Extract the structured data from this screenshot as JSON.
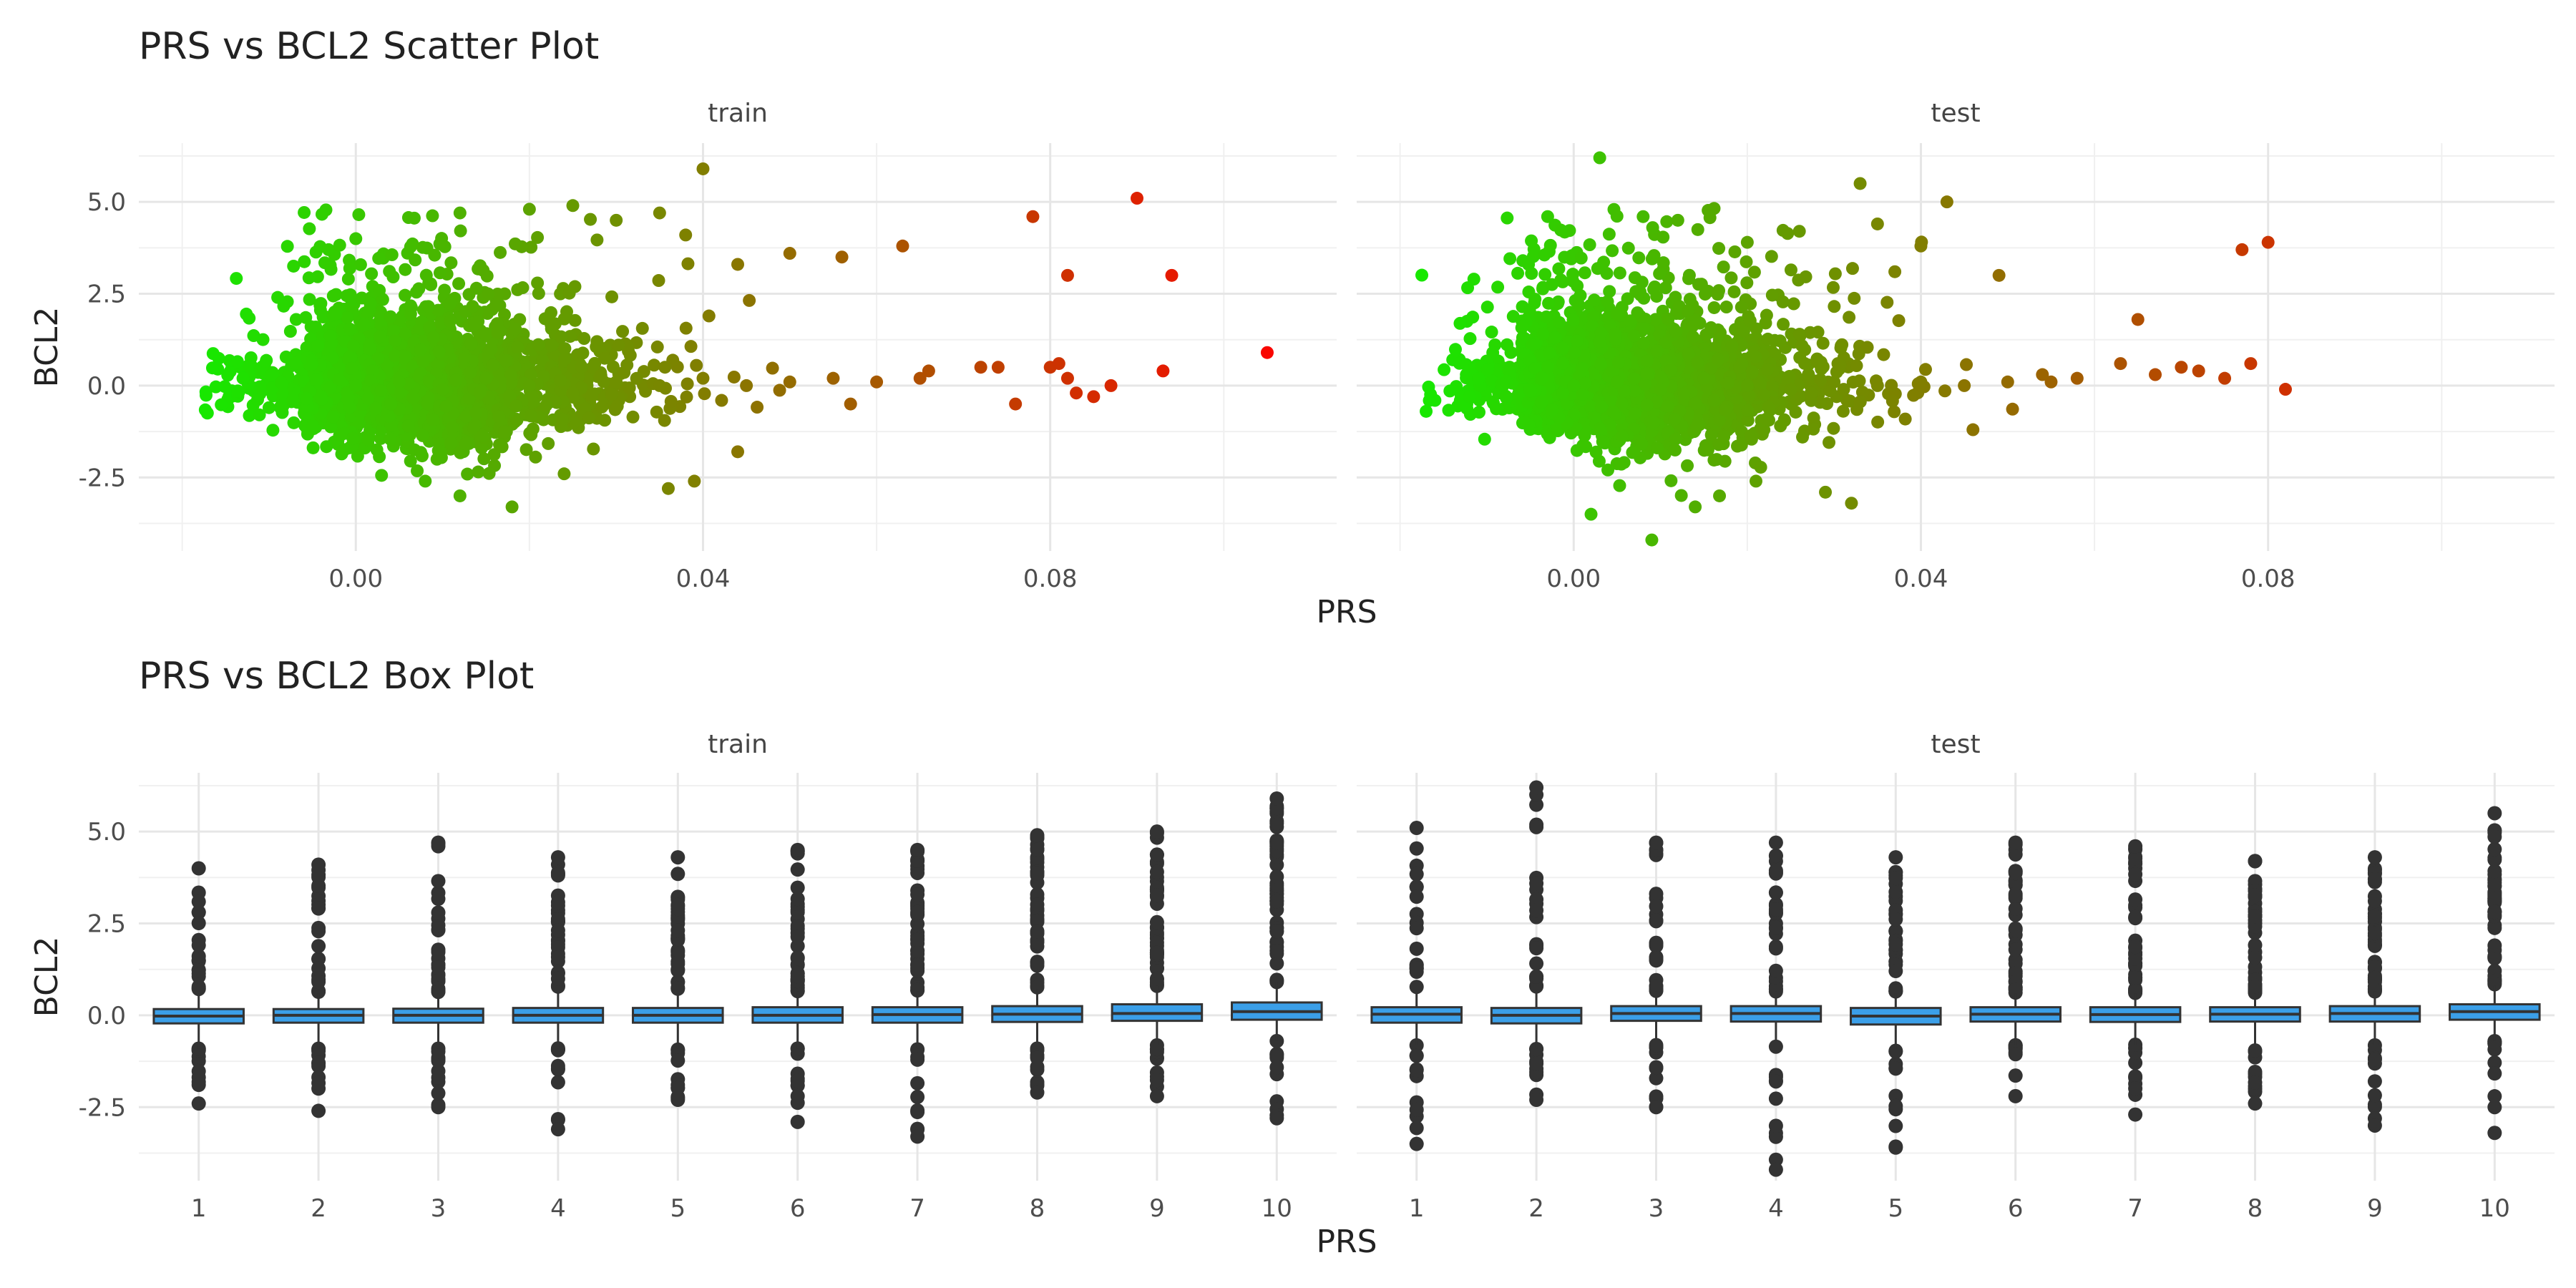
{
  "chart_data": [
    {
      "type": "scatter",
      "title": "PRS vs BCL2 Scatter Plot",
      "xlabel": "PRS",
      "ylabel": "BCL2",
      "facets": [
        "train",
        "test"
      ],
      "xlim": [
        -0.025,
        0.113
      ],
      "ylim": [
        -4.5,
        6.6
      ],
      "x_ticks": [
        0.0,
        0.04,
        0.08
      ],
      "x_tick_labels": [
        "0.00",
        "0.04",
        "0.08"
      ],
      "y_ticks": [
        -2.5,
        0.0,
        2.5,
        5.0
      ],
      "y_tick_labels": [
        "-2.5",
        "0.0",
        "2.5",
        "5.0"
      ],
      "color_scale": {
        "low": "#00ff00",
        "high": "#ff0000",
        "variable": "PRS"
      },
      "grid": true,
      "legend": "none",
      "series": [
        {
          "facet": "train",
          "points": [
            [
              0.0,
              0.0
            ],
            [
              0.005,
              0.1
            ],
            [
              0.01,
              -0.1
            ],
            [
              0.015,
              0.2
            ],
            [
              0.02,
              0.0
            ],
            [
              0.025,
              -0.2
            ],
            [
              0.03,
              0.1
            ],
            [
              0.035,
              0.0
            ],
            [
              0.04,
              0.2
            ],
            [
              0.045,
              0.0
            ],
            [
              0.05,
              0.1
            ],
            [
              0.055,
              0.2
            ],
            [
              0.06,
              0.1
            ],
            [
              0.065,
              0.2
            ],
            [
              -0.013,
              0.2
            ],
            [
              -0.01,
              -0.6
            ],
            [
              -0.009,
              2.4
            ],
            [
              0.0,
              4.0
            ],
            [
              0.012,
              4.7
            ],
            [
              0.02,
              4.8
            ],
            [
              0.025,
              4.9
            ],
            [
              0.03,
              4.5
            ],
            [
              0.035,
              4.7
            ],
            [
              0.038,
              4.1
            ],
            [
              0.04,
              5.9
            ],
            [
              0.044,
              3.3
            ],
            [
              0.05,
              3.6
            ],
            [
              0.056,
              3.5
            ],
            [
              0.063,
              3.8
            ],
            [
              0.008,
              -2.6
            ],
            [
              0.012,
              -3.0
            ],
            [
              0.018,
              -3.3
            ],
            [
              0.024,
              -2.4
            ],
            [
              0.036,
              -2.8
            ],
            [
              0.039,
              -2.6
            ],
            [
              0.044,
              -1.8
            ],
            [
              0.057,
              -0.5
            ],
            [
              0.066,
              0.4
            ],
            [
              0.072,
              0.5
            ],
            [
              0.074,
              0.5
            ],
            [
              0.076,
              -0.5
            ],
            [
              0.078,
              4.6
            ],
            [
              0.08,
              0.5
            ],
            [
              0.081,
              0.6
            ],
            [
              0.082,
              3.0
            ],
            [
              0.082,
              0.2
            ],
            [
              0.083,
              -0.2
            ],
            [
              0.085,
              -0.3
            ],
            [
              0.087,
              0.0
            ],
            [
              0.09,
              5.1
            ],
            [
              0.093,
              0.4
            ],
            [
              0.094,
              3.0
            ],
            [
              0.105,
              0.9
            ]
          ]
        },
        {
          "facet": "test",
          "points": [
            [
              0.0,
              0.0
            ],
            [
              0.005,
              0.1
            ],
            [
              0.01,
              -0.1
            ],
            [
              0.015,
              0.2
            ],
            [
              0.02,
              0.0
            ],
            [
              0.025,
              -0.1
            ],
            [
              0.03,
              0.1
            ],
            [
              0.035,
              0.0
            ],
            [
              0.04,
              0.1
            ],
            [
              0.045,
              0.0
            ],
            [
              0.05,
              0.1
            ],
            [
              0.055,
              0.1
            ],
            [
              -0.017,
              -0.7
            ],
            [
              -0.012,
              -0.3
            ],
            [
              -0.003,
              4.6
            ],
            [
              0.003,
              6.2
            ],
            [
              0.008,
              4.6
            ],
            [
              0.012,
              4.5
            ],
            [
              0.02,
              3.9
            ],
            [
              0.026,
              4.2
            ],
            [
              0.033,
              5.5
            ],
            [
              0.035,
              4.4
            ],
            [
              0.037,
              3.1
            ],
            [
              0.04,
              3.8
            ],
            [
              0.043,
              5.0
            ],
            [
              0.049,
              3.0
            ],
            [
              0.002,
              -3.5
            ],
            [
              0.009,
              -4.2
            ],
            [
              0.014,
              -3.3
            ],
            [
              0.021,
              -2.6
            ],
            [
              0.029,
              -2.9
            ],
            [
              0.032,
              -3.2
            ],
            [
              0.046,
              -1.2
            ],
            [
              0.054,
              0.3
            ],
            [
              0.058,
              0.2
            ],
            [
              0.063,
              0.6
            ],
            [
              0.065,
              1.8
            ],
            [
              0.067,
              0.3
            ],
            [
              0.07,
              0.5
            ],
            [
              0.072,
              0.4
            ],
            [
              0.075,
              0.2
            ],
            [
              0.077,
              3.7
            ],
            [
              0.078,
              0.6
            ],
            [
              0.08,
              3.9
            ],
            [
              0.082,
              -0.1
            ]
          ]
        }
      ]
    },
    {
      "type": "box",
      "title": "PRS vs BCL2 Box Plot",
      "xlabel": "PRS",
      "ylabel": "BCL2",
      "facets": [
        "train",
        "test"
      ],
      "categories": [
        "1",
        "2",
        "3",
        "4",
        "5",
        "6",
        "7",
        "8",
        "9",
        "10"
      ],
      "ylim": [
        -4.5,
        6.6
      ],
      "y_ticks": [
        -2.5,
        0.0,
        2.5,
        5.0
      ],
      "y_tick_labels": [
        "-2.5",
        "0.0",
        "2.5",
        "5.0"
      ],
      "box_fill": "#3b9fe8",
      "grid": true,
      "series": [
        {
          "facet": "train",
          "boxes": [
            {
              "q1": -0.22,
              "median": -0.02,
              "q3": 0.17,
              "outlier_low": [
                -0.9,
                -2.4
              ],
              "outlier_high": [
                0.6,
                4.0
              ]
            },
            {
              "q1": -0.2,
              "median": 0.0,
              "q3": 0.17,
              "outlier_low": [
                -0.9,
                -2.6
              ],
              "outlier_high": [
                0.6,
                4.1
              ]
            },
            {
              "q1": -0.2,
              "median": 0.0,
              "q3": 0.18,
              "outlier_low": [
                -0.9,
                -2.5
              ],
              "outlier_high": [
                0.6,
                4.7
              ]
            },
            {
              "q1": -0.2,
              "median": 0.0,
              "q3": 0.2,
              "outlier_low": [
                -0.9,
                -3.1
              ],
              "outlier_high": [
                0.6,
                4.3
              ]
            },
            {
              "q1": -0.2,
              "median": 0.0,
              "q3": 0.2,
              "outlier_low": [
                -0.9,
                -2.3
              ],
              "outlier_high": [
                0.6,
                4.3
              ]
            },
            {
              "q1": -0.2,
              "median": 0.0,
              "q3": 0.22,
              "outlier_low": [
                -0.9,
                -2.9
              ],
              "outlier_high": [
                0.65,
                4.5
              ]
            },
            {
              "q1": -0.2,
              "median": 0.02,
              "q3": 0.22,
              "outlier_low": [
                -0.9,
                -3.3
              ],
              "outlier_high": [
                0.65,
                4.5
              ]
            },
            {
              "q1": -0.18,
              "median": 0.03,
              "q3": 0.25,
              "outlier_low": [
                -0.9,
                -2.1
              ],
              "outlier_high": [
                0.7,
                4.9
              ]
            },
            {
              "q1": -0.15,
              "median": 0.05,
              "q3": 0.3,
              "outlier_low": [
                -0.8,
                -2.2
              ],
              "outlier_high": [
                0.8,
                5.0
              ]
            },
            {
              "q1": -0.12,
              "median": 0.1,
              "q3": 0.35,
              "outlier_low": [
                -0.7,
                -2.8
              ],
              "outlier_high": [
                0.9,
                5.9
              ]
            }
          ]
        },
        {
          "facet": "test",
          "boxes": [
            {
              "q1": -0.2,
              "median": 0.03,
              "q3": 0.22,
              "outlier_low": [
                -0.8,
                -3.5
              ],
              "outlier_high": [
                0.6,
                5.1
              ]
            },
            {
              "q1": -0.22,
              "median": 0.0,
              "q3": 0.2,
              "outlier_low": [
                -0.9,
                -2.3
              ],
              "outlier_high": [
                0.6,
                6.2
              ]
            },
            {
              "q1": -0.15,
              "median": 0.05,
              "q3": 0.25,
              "outlier_low": [
                -0.8,
                -2.5
              ],
              "outlier_high": [
                0.65,
                4.7
              ]
            },
            {
              "q1": -0.17,
              "median": 0.05,
              "q3": 0.25,
              "outlier_low": [
                -0.8,
                -4.2
              ],
              "outlier_high": [
                0.65,
                4.7
              ]
            },
            {
              "q1": -0.25,
              "median": -0.02,
              "q3": 0.2,
              "outlier_low": [
                -0.9,
                -3.6
              ],
              "outlier_high": [
                0.6,
                4.3
              ]
            },
            {
              "q1": -0.17,
              "median": 0.03,
              "q3": 0.22,
              "outlier_low": [
                -0.8,
                -2.2
              ],
              "outlier_high": [
                0.6,
                4.7
              ]
            },
            {
              "q1": -0.18,
              "median": 0.02,
              "q3": 0.22,
              "outlier_low": [
                -0.8,
                -2.7
              ],
              "outlier_high": [
                0.6,
                4.6
              ]
            },
            {
              "q1": -0.17,
              "median": 0.03,
              "q3": 0.22,
              "outlier_low": [
                -0.8,
                -2.4
              ],
              "outlier_high": [
                0.6,
                4.2
              ]
            },
            {
              "q1": -0.17,
              "median": 0.05,
              "q3": 0.25,
              "outlier_low": [
                -0.8,
                -3.0
              ],
              "outlier_high": [
                0.65,
                4.3
              ]
            },
            {
              "q1": -0.12,
              "median": 0.1,
              "q3": 0.3,
              "outlier_low": [
                -0.7,
                -3.2
              ],
              "outlier_high": [
                0.8,
                5.5
              ]
            }
          ]
        }
      ]
    }
  ]
}
